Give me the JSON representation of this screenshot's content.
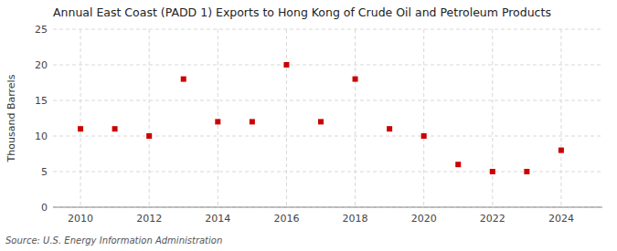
{
  "chart_data": {
    "type": "scatter",
    "title": "Annual East Coast (PADD 1) Exports to Hong Kong of Crude Oil and Petroleum Products",
    "ylabel": "Thousand Barrels",
    "annotations": [
      "Source: U.S. Energy Information Administration"
    ],
    "x": [
      2010,
      2011,
      2012,
      2013,
      2014,
      2015,
      2016,
      2017,
      2018,
      2019,
      2020,
      2021,
      2022,
      2023,
      2024
    ],
    "values": [
      11,
      11,
      10,
      18,
      12,
      12,
      20,
      12,
      18,
      11,
      10,
      6,
      5,
      5,
      8
    ],
    "color": "#cc0000",
    "marker": "square",
    "xlim": [
      2009.2,
      2025.2
    ],
    "ylim": [
      0,
      25
    ],
    "xticks": [
      2010,
      2012,
      2014,
      2016,
      2018,
      2020,
      2022,
      2024
    ],
    "yticks": [
      0,
      5,
      10,
      15,
      20,
      25
    ],
    "grid": true
  }
}
